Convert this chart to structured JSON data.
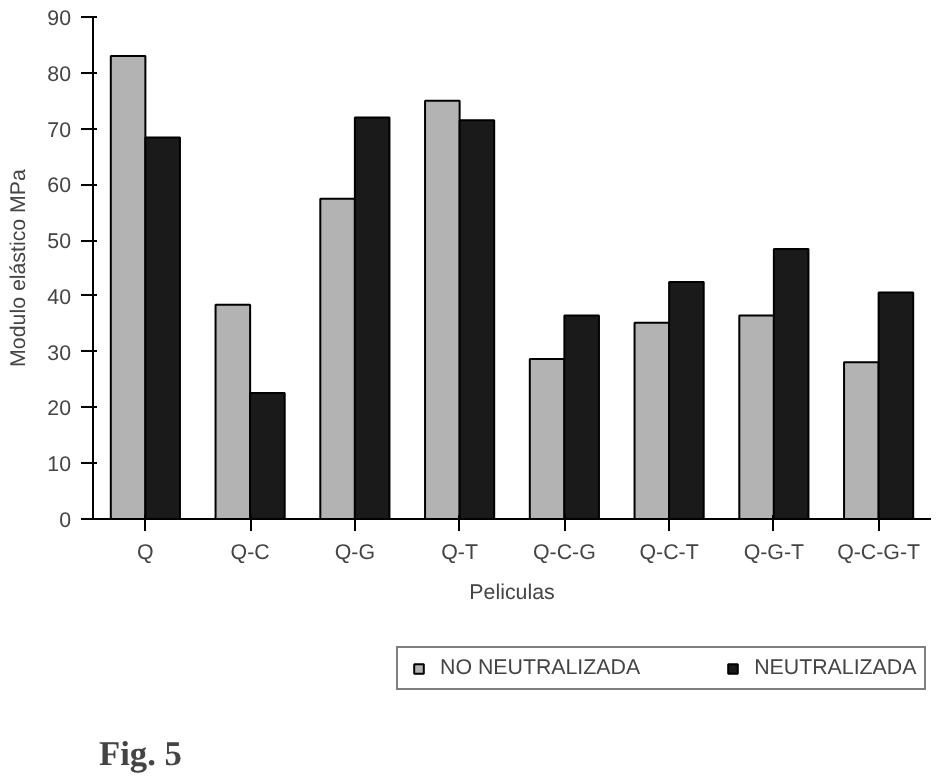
{
  "chart_data": {
    "type": "bar",
    "xlabel": "Peliculas",
    "ylabel": "Modulo elástico MPa",
    "categories": [
      "Q",
      "Q-C",
      "Q-G",
      "Q-T",
      "Q-C-G",
      "Q-C-T",
      "Q-G-T",
      "Q-C-G-T"
    ],
    "series": [
      {
        "name": "NO NEUTRALIZADA",
        "color": "#b3b3b3",
        "values": [
          83,
          38.4,
          57.4,
          75,
          28.7,
          35.2,
          36.5,
          28.1
        ]
      },
      {
        "name": "NEUTRALIZADA",
        "color": "#1a1a1a",
        "values": [
          68.4,
          22.6,
          72,
          71.5,
          36.5,
          42.5,
          48.4,
          40.6
        ]
      }
    ],
    "ylim": [
      0,
      90
    ],
    "yticks": [
      0,
      10,
      20,
      30,
      40,
      50,
      60,
      70,
      80,
      90
    ],
    "grid": false,
    "legend": "bottom",
    "annotations": [
      "Fig. 5"
    ]
  }
}
